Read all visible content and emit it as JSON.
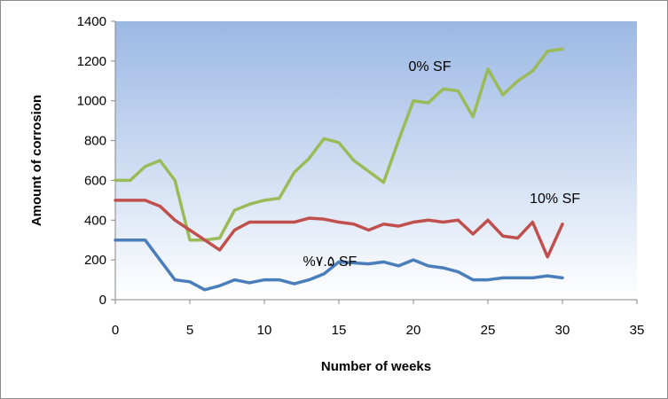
{
  "chart_data": {
    "type": "line",
    "title": "",
    "xlabel": "Number of weeks",
    "ylabel": "Amount of corrosion",
    "xlim": [
      0,
      35
    ],
    "ylim": [
      0,
      1400
    ],
    "xticks": [
      0,
      5,
      10,
      15,
      20,
      25,
      30,
      35
    ],
    "yticks": [
      0,
      200,
      400,
      600,
      800,
      1000,
      1200,
      1400
    ],
    "grid": false,
    "legend": "none",
    "x": [
      0,
      1,
      2,
      3,
      4,
      5,
      6,
      7,
      8,
      9,
      10,
      11,
      12,
      13,
      14,
      15,
      16,
      17,
      18,
      19,
      20,
      21,
      22,
      23,
      24,
      25,
      26,
      27,
      28,
      29,
      30
    ],
    "series": [
      {
        "name": "0% SF",
        "color": "#9bbb59",
        "values": [
          600,
          600,
          670,
          700,
          600,
          300,
          300,
          310,
          450,
          480,
          500,
          510,
          640,
          710,
          810,
          790,
          700,
          645,
          590,
          800,
          1000,
          990,
          1060,
          1050,
          920,
          1160,
          1030,
          1100,
          1150,
          1250,
          1260
        ]
      },
      {
        "name": "10% SF",
        "color": "#c0504d",
        "values": [
          500,
          500,
          500,
          470,
          400,
          350,
          300,
          250,
          350,
          390,
          390,
          390,
          390,
          410,
          405,
          390,
          380,
          350,
          380,
          370,
          390,
          400,
          390,
          400,
          330,
          400,
          320,
          310,
          390,
          215,
          380
        ]
      },
      {
        "name": "%۷.۵ SF",
        "color": "#4a7ebb",
        "values": [
          300,
          300,
          300,
          200,
          100,
          90,
          50,
          70,
          100,
          85,
          100,
          100,
          80,
          100,
          130,
          190,
          185,
          180,
          190,
          170,
          200,
          170,
          160,
          140,
          100,
          100,
          110,
          110,
          110,
          120,
          110
        ]
      }
    ],
    "plot_background": [
      "#9bb8e4",
      "#ffffff"
    ]
  }
}
